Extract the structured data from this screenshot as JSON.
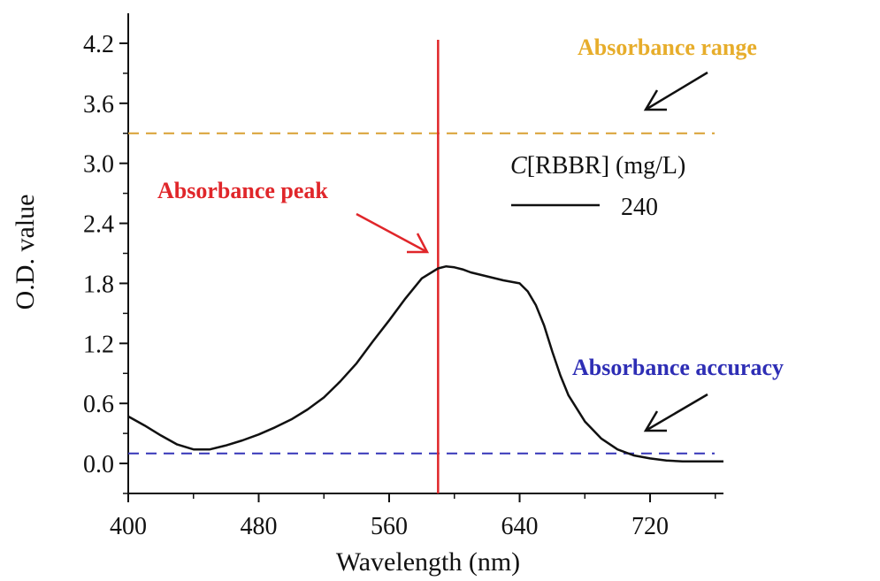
{
  "chart_data": {
    "type": "line",
    "xlabel": "Wavelength (nm)",
    "ylabel": "O.D. value",
    "xlim": [
      400,
      765
    ],
    "ylim": [
      -0.3,
      4.5
    ],
    "x_ticks": [
      400,
      480,
      560,
      640,
      720
    ],
    "y_ticks": [
      0.0,
      0.6,
      1.2,
      1.8,
      2.4,
      3.0,
      3.6,
      4.2
    ],
    "x_tick_labels": [
      "400",
      "480",
      "560",
      "640",
      "720"
    ],
    "y_tick_labels": [
      "0.0",
      "0.6",
      "1.2",
      "1.8",
      "2.4",
      "3.0",
      "3.6",
      "4.2"
    ],
    "grid": false,
    "series": [
      {
        "name": "240",
        "color": "#111111",
        "x": [
          400,
          410,
          420,
          430,
          440,
          450,
          460,
          470,
          480,
          490,
          500,
          510,
          520,
          530,
          540,
          550,
          560,
          570,
          580,
          590,
          595,
          600,
          605,
          610,
          620,
          630,
          640,
          645,
          650,
          655,
          660,
          665,
          670,
          680,
          690,
          700,
          710,
          720,
          730,
          740,
          750,
          760,
          765
        ],
        "y": [
          0.47,
          0.38,
          0.28,
          0.19,
          0.14,
          0.14,
          0.18,
          0.23,
          0.29,
          0.36,
          0.44,
          0.54,
          0.66,
          0.82,
          1.0,
          1.22,
          1.43,
          1.65,
          1.85,
          1.95,
          1.97,
          1.96,
          1.94,
          1.91,
          1.87,
          1.83,
          1.8,
          1.72,
          1.58,
          1.38,
          1.12,
          0.88,
          0.68,
          0.42,
          0.25,
          0.14,
          0.08,
          0.05,
          0.03,
          0.02,
          0.02,
          0.02,
          0.02
        ]
      }
    ],
    "legend": {
      "title_italic": "C",
      "title_rest": "[RBBR] (mg/L)",
      "entry": "240",
      "position": "upper-right"
    },
    "reference_lines": [
      {
        "orientation": "horizontal",
        "value": 3.3,
        "style": "dashed",
        "color": "#d9a032"
      },
      {
        "orientation": "horizontal",
        "value": 0.1,
        "style": "dashed",
        "color": "#3535b8"
      },
      {
        "orientation": "vertical",
        "value": 590,
        "style": "solid",
        "color": "#e0262a"
      }
    ],
    "annotations": [
      {
        "text": "Absorbance range",
        "color": "#e7ad2b"
      },
      {
        "text": "Absorbance peak",
        "color": "#e0262a"
      },
      {
        "text": "Absorbance accuracy",
        "color": "#2e2eb5"
      }
    ]
  }
}
